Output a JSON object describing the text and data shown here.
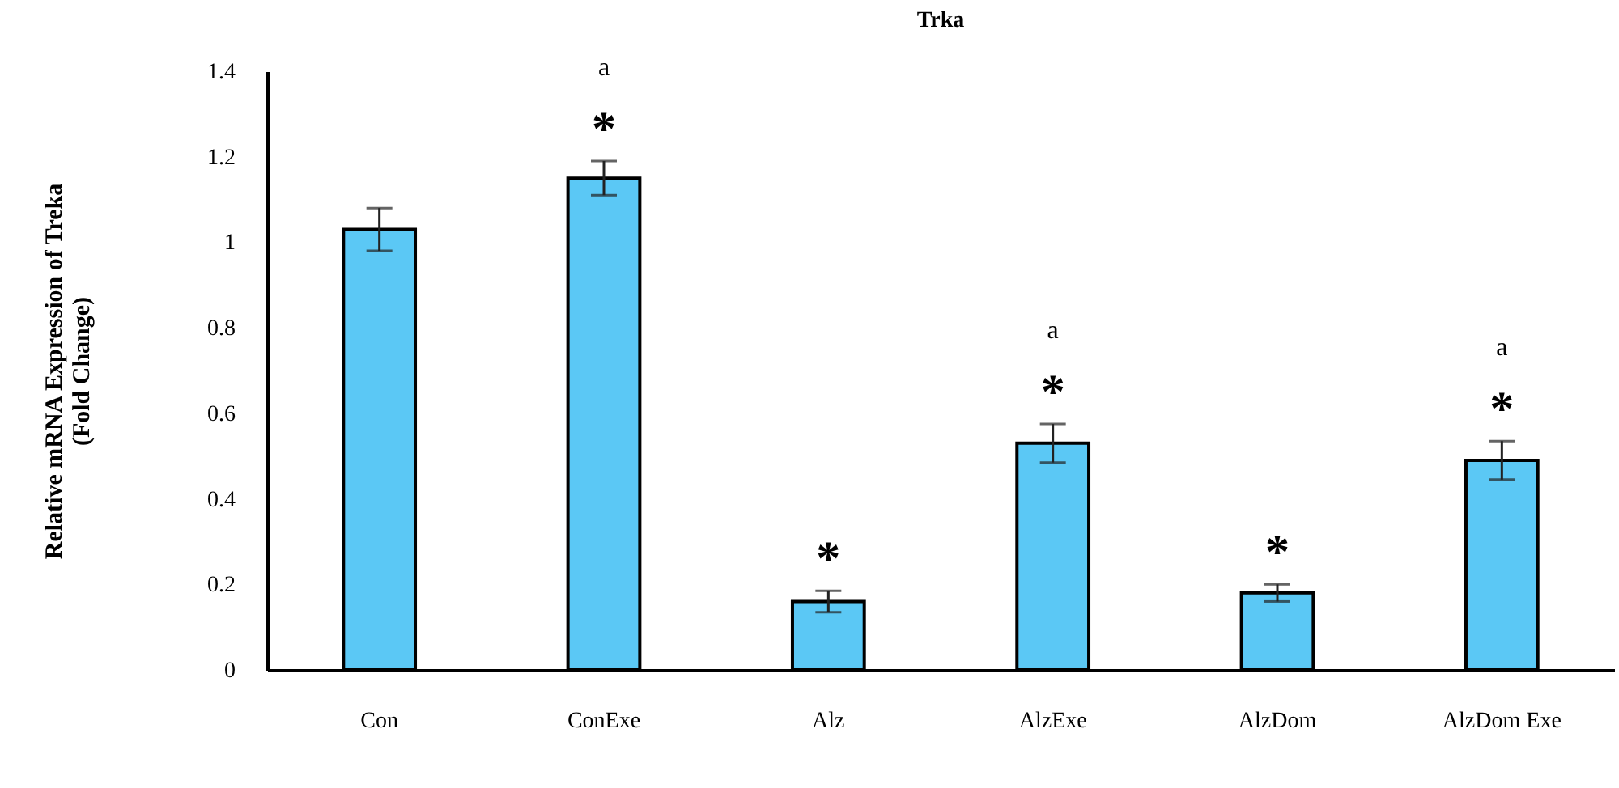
{
  "chart_data": {
    "type": "bar",
    "title": "Trka",
    "ylabel": "Relative mRNA Expression of Treka\n(Fold Change)",
    "categories": [
      "Con",
      "ConExe",
      "Alz",
      "AlzExe",
      "AlzDom",
      "AlzDom Exe"
    ],
    "values": [
      1.03,
      1.15,
      0.16,
      0.53,
      0.18,
      0.49
    ],
    "errors": [
      0.05,
      0.04,
      0.025,
      0.045,
      0.02,
      0.045
    ],
    "color": "#5bc8f5",
    "ylim": [
      0,
      1.4
    ],
    "yticks": [
      0,
      0.2,
      0.4,
      0.6,
      0.8,
      1,
      1.2,
      1.4
    ],
    "annotations": [
      "a",
      {
        "text": "*",
        "x": "ConExe",
        "y": 1.15
      },
      {
        "text": "*",
        "x": "Alz",
        "y": 0.16
      },
      "a",
      {
        "text": "*",
        "x": "AlzExe",
        "y": 0.53
      },
      {
        "text": "*",
        "x": "AlzDom",
        "y": 0.18
      },
      "a",
      {
        "text": "*",
        "x": "AlzDom Exe",
        "y": 0.49
      }
    ]
  }
}
